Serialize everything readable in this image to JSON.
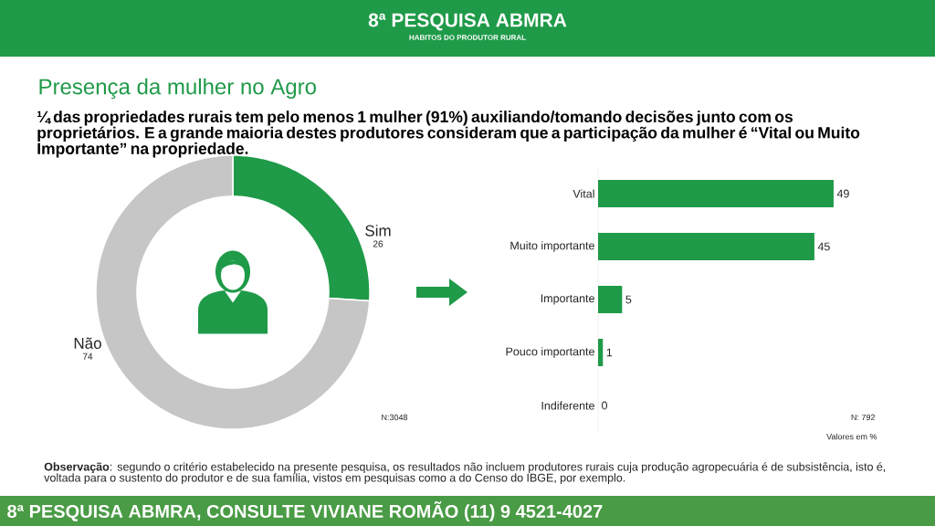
{
  "chart_data": [
    {
      "type": "donut",
      "title": "Presença da mulher no Agro",
      "subtitle": "¼ das propriedades rurais tem pelo menos 1 mulher (91%) auxiliando/tomando decisões junto com os proprietários. E a grande maioria destes produtores consideram que a participação da mulher é  “Vital ou Muito Importante”  na propriedade.",
      "categories": [
        "Sim",
        "Não"
      ],
      "values": [
        26,
        74
      ],
      "colors": [
        "#1f9a48",
        "#c6c6c6"
      ],
      "data_labels": true,
      "annotations": [
        "8ª PESQUISA ABMRA",
        "HABITOS DO PRODUTOR RURAL",
        "N:3048",
        "**Observação**: segundo o critério estabelecido na presente pesquisa, os resultados não incluem produtores rurais cuja produção agropecuária é de subsistência, isto é, voltada para o sustento do produtor e de sua família, vistos em pesquisas como a do Censo do IBGE, por exemplo.",
        "8ª PESQUISA ABMRA, CONSULTE VIVIANE ROMÃO (11) 9 4521-4027"
      ]
    },
    {
      "type": "bar",
      "orientation": "horizontal",
      "categories": [
        "Vital",
        "Muito importante",
        "Importante",
        "Pouco importante",
        "Indiferente"
      ],
      "values": [
        49,
        45,
        5,
        1,
        0
      ],
      "color": "#1f9a48",
      "data_labels": true,
      "annotations": [
        "N: 792",
        "Valores em %"
      ]
    }
  ]
}
